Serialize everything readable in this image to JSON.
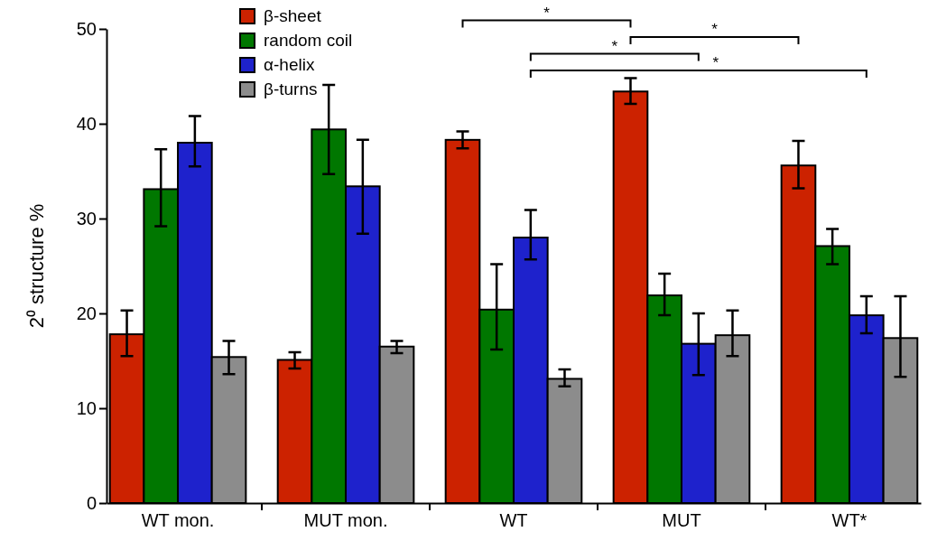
{
  "chart_data": {
    "type": "bar",
    "ylabel": "2⁰ structure %",
    "categories": [
      "WT mon.",
      "MUT mon.",
      "WT",
      "MUT",
      "WT*"
    ],
    "ylim": [
      0,
      50
    ],
    "yticks": [
      0,
      10,
      20,
      30,
      40,
      50
    ],
    "legend": "top left",
    "series": [
      {
        "name": "β-sheet",
        "color": "#cc2200",
        "values": [
          17.8,
          15.1,
          38.3,
          43.4,
          35.6
        ],
        "errors": [
          [
            15.5,
            20.3
          ],
          [
            14.2,
            15.9
          ],
          [
            37.4,
            39.2
          ],
          [
            42.1,
            44.8
          ],
          [
            33.2,
            38.2
          ]
        ]
      },
      {
        "name": "random coil",
        "color": "#007700",
        "values": [
          33.1,
          39.4,
          20.4,
          21.9,
          27.1
        ],
        "errors": [
          [
            29.2,
            37.3
          ],
          [
            34.7,
            44.1
          ],
          [
            16.2,
            25.2
          ],
          [
            19.8,
            24.2
          ],
          [
            25.2,
            28.9
          ]
        ]
      },
      {
        "name": "α-helix",
        "color": "#1e22cc",
        "values": [
          38.0,
          33.4,
          28.0,
          16.8,
          19.8
        ],
        "errors": [
          [
            35.5,
            40.8
          ],
          [
            28.4,
            38.3
          ],
          [
            25.7,
            30.9
          ],
          [
            13.5,
            20.0
          ],
          [
            17.9,
            21.8
          ]
        ]
      },
      {
        "name": "β-turns",
        "color": "#8c8c8c",
        "values": [
          15.4,
          16.5,
          13.1,
          17.7,
          17.4
        ],
        "errors": [
          [
            13.6,
            17.1
          ],
          [
            15.8,
            17.1
          ],
          [
            12.3,
            14.1
          ],
          [
            15.5,
            20.3
          ],
          [
            13.3,
            21.8
          ]
        ]
      }
    ],
    "annotations": [
      "*",
      "*",
      "*",
      "*"
    ]
  }
}
